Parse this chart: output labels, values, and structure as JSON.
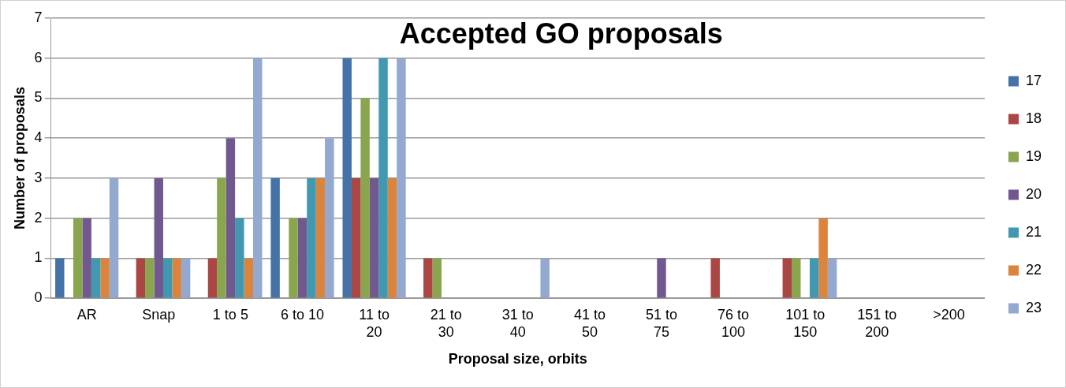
{
  "chart_data": {
    "type": "bar",
    "title": "Accepted GO proposals",
    "xlabel": "Proposal size, orbits",
    "ylabel": "Number of proposals",
    "categories": [
      "AR",
      "Snap",
      "1 to 5",
      "6 to 10",
      "11 to 20",
      "21 to 30",
      "31 to 40",
      "41 to 50",
      "51 to 75",
      "76 to 100",
      "101 to 150",
      "151 to 200",
      ">200"
    ],
    "series": [
      {
        "name": "17",
        "color": "#4572a7",
        "values": [
          1,
          0,
          0,
          3,
          6,
          0,
          0,
          0,
          0,
          0,
          0,
          0,
          0
        ]
      },
      {
        "name": "18",
        "color": "#aa4643",
        "values": [
          0,
          1,
          1,
          0,
          3,
          1,
          0,
          0,
          0,
          1,
          1,
          0,
          0
        ]
      },
      {
        "name": "19",
        "color": "#89a54e",
        "values": [
          2,
          1,
          3,
          2,
          5,
          1,
          0,
          0,
          0,
          0,
          1,
          0,
          0
        ]
      },
      {
        "name": "20",
        "color": "#71588f",
        "values": [
          2,
          3,
          4,
          2,
          3,
          0,
          0,
          0,
          1,
          0,
          0,
          0,
          0
        ]
      },
      {
        "name": "21",
        "color": "#4198af",
        "values": [
          1,
          1,
          2,
          3,
          6,
          0,
          0,
          0,
          0,
          0,
          1,
          0,
          0
        ]
      },
      {
        "name": "22",
        "color": "#db843d",
        "values": [
          1,
          1,
          1,
          3,
          3,
          0,
          0,
          0,
          0,
          0,
          2,
          0,
          0
        ]
      },
      {
        "name": "23",
        "color": "#93a9cf",
        "values": [
          3,
          1,
          6,
          4,
          6,
          0,
          1,
          0,
          0,
          0,
          1,
          0,
          0
        ]
      }
    ],
    "ylim": [
      0,
      7
    ],
    "yticks": [
      0,
      1,
      2,
      3,
      4,
      5,
      6,
      7
    ],
    "grid": "y",
    "legend": "right"
  }
}
